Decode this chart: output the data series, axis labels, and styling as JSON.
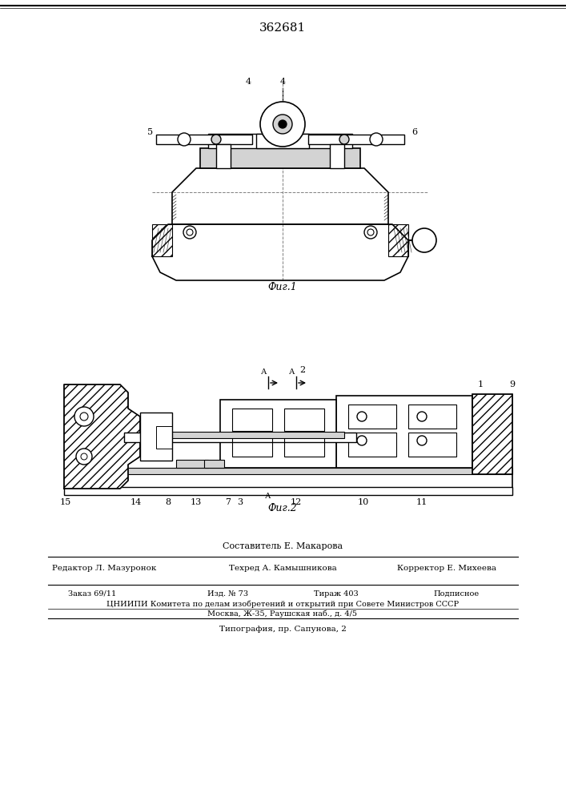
{
  "title": "362681",
  "fig1_label": "Фиг.1",
  "fig2_label": "Фиг.2",
  "sestavitel": "Составитель Е. Макарова",
  "redaktor": "Редактор Л. Мазуронок",
  "tekhred": "Техред А. Камышникова",
  "korrektor": "Корректор Е. Михеева",
  "zakaz": "Заказ 69/11",
  "izd": "Изд. № 73",
  "tirazh": "Тираж 403",
  "podpisnoe": "Подписное",
  "tsniip": "ЦНИИПИ Комитета по делам изобретений и открытий при Совете Министров СССР",
  "moskva": "Москва, Ж-35, Раушская наб., д. 4/5",
  "tipografia": "Типография, пр. Сапунова, 2",
  "bg_color": "#ffffff",
  "line_color": "#000000",
  "hatch_color": "#000000"
}
